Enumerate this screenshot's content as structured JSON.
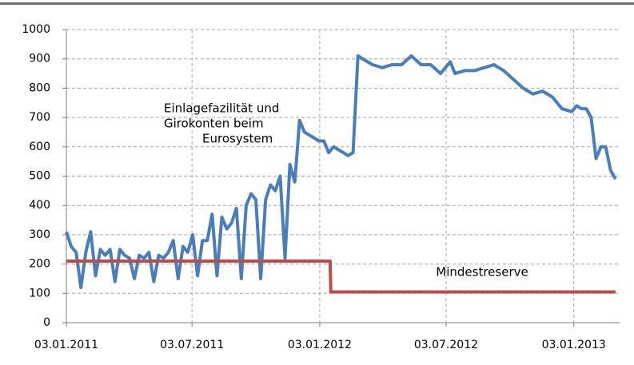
{
  "chart_data": {
    "type": "line",
    "annotations": [
      [
        "Einlagefazilität und",
        "Girokonten beim",
        "Eurosystem"
      ],
      [
        "Mindestreserve"
      ]
    ],
    "series": [
      {
        "name": "Einlagefazilität und Girokonten beim Eurosystem",
        "color": "#4a7ebb",
        "x": [
          "03.01.2011",
          "10.01.2011",
          "17.01.2011",
          "24.01.2011",
          "31.01.2011",
          "07.02.2011",
          "14.02.2011",
          "21.02.2011",
          "28.02.2011",
          "07.03.2011",
          "14.03.2011",
          "21.03.2011",
          "28.03.2011",
          "04.04.2011",
          "11.04.2011",
          "18.04.2011",
          "25.04.2011",
          "02.05.2011",
          "09.05.2011",
          "16.05.2011",
          "23.05.2011",
          "30.05.2011",
          "06.06.2011",
          "13.06.2011",
          "20.06.2011",
          "27.06.2011",
          "04.07.2011",
          "11.07.2011",
          "18.07.2011",
          "25.07.2011",
          "01.08.2011",
          "08.08.2011",
          "15.08.2011",
          "22.08.2011",
          "29.08.2011",
          "05.09.2011",
          "12.09.2011",
          "19.09.2011",
          "26.09.2011",
          "03.10.2011",
          "10.10.2011",
          "17.10.2011",
          "24.10.2011",
          "31.10.2011",
          "07.11.2011",
          "14.11.2011",
          "21.11.2011",
          "28.11.2011",
          "05.12.2011",
          "12.12.2011",
          "19.12.2011",
          "02.01.2012",
          "09.01.2012",
          "16.01.2012",
          "23.01.2012",
          "30.01.2012",
          "06.02.2012",
          "13.02.2012",
          "20.02.2012",
          "27.02.2012",
          "05.03.2012",
          "19.03.2012",
          "02.04.2012",
          "16.04.2012",
          "30.04.2012",
          "14.05.2012",
          "28.05.2012",
          "11.06.2012",
          "25.06.2012",
          "09.07.2012",
          "16.07.2012",
          "30.07.2012",
          "13.08.2012",
          "27.08.2012",
          "10.09.2012",
          "24.09.2012",
          "08.10.2012",
          "22.10.2012",
          "05.11.2012",
          "19.11.2012",
          "03.12.2012",
          "17.12.2012",
          "31.12.2012",
          "07.01.2013",
          "14.01.2013",
          "21.01.2013",
          "28.01.2013",
          "04.02.2013",
          "11.02.2013",
          "18.02.2013",
          "25.02.2013",
          "04.03.2013"
        ],
        "values": [
          310,
          260,
          240,
          120,
          240,
          310,
          160,
          250,
          230,
          250,
          140,
          250,
          230,
          220,
          150,
          230,
          220,
          240,
          140,
          230,
          220,
          240,
          280,
          150,
          260,
          240,
          300,
          160,
          280,
          280,
          370,
          160,
          360,
          320,
          340,
          390,
          150,
          400,
          440,
          420,
          150,
          420,
          470,
          450,
          500,
          220,
          540,
          480,
          690,
          650,
          640,
          620,
          620,
          580,
          600,
          590,
          580,
          570,
          580,
          910,
          900,
          880,
          870,
          880,
          880,
          910,
          880,
          880,
          850,
          890,
          850,
          860,
          860,
          870,
          880,
          860,
          830,
          800,
          780,
          790,
          770,
          730,
          720,
          740,
          730,
          730,
          700,
          560,
          600,
          600,
          520,
          490
        ]
      },
      {
        "name": "Mindestreserve",
        "color": "#be4b48",
        "x": [
          "03.01.2011",
          "18.01.2012",
          "19.01.2012",
          "04.03.2013"
        ],
        "values": [
          210,
          210,
          105,
          105
        ]
      }
    ],
    "xlim": [
      "03.01.2011",
      "10.03.2013"
    ],
    "xticks": [
      "03.01.2011",
      "03.07.2011",
      "03.01.2012",
      "03.07.2012",
      "03.01.2013"
    ],
    "ylim": [
      0,
      1000
    ],
    "yticks": [
      0,
      100,
      200,
      300,
      400,
      500,
      600,
      700,
      800,
      900,
      1000
    ],
    "grid": true
  }
}
